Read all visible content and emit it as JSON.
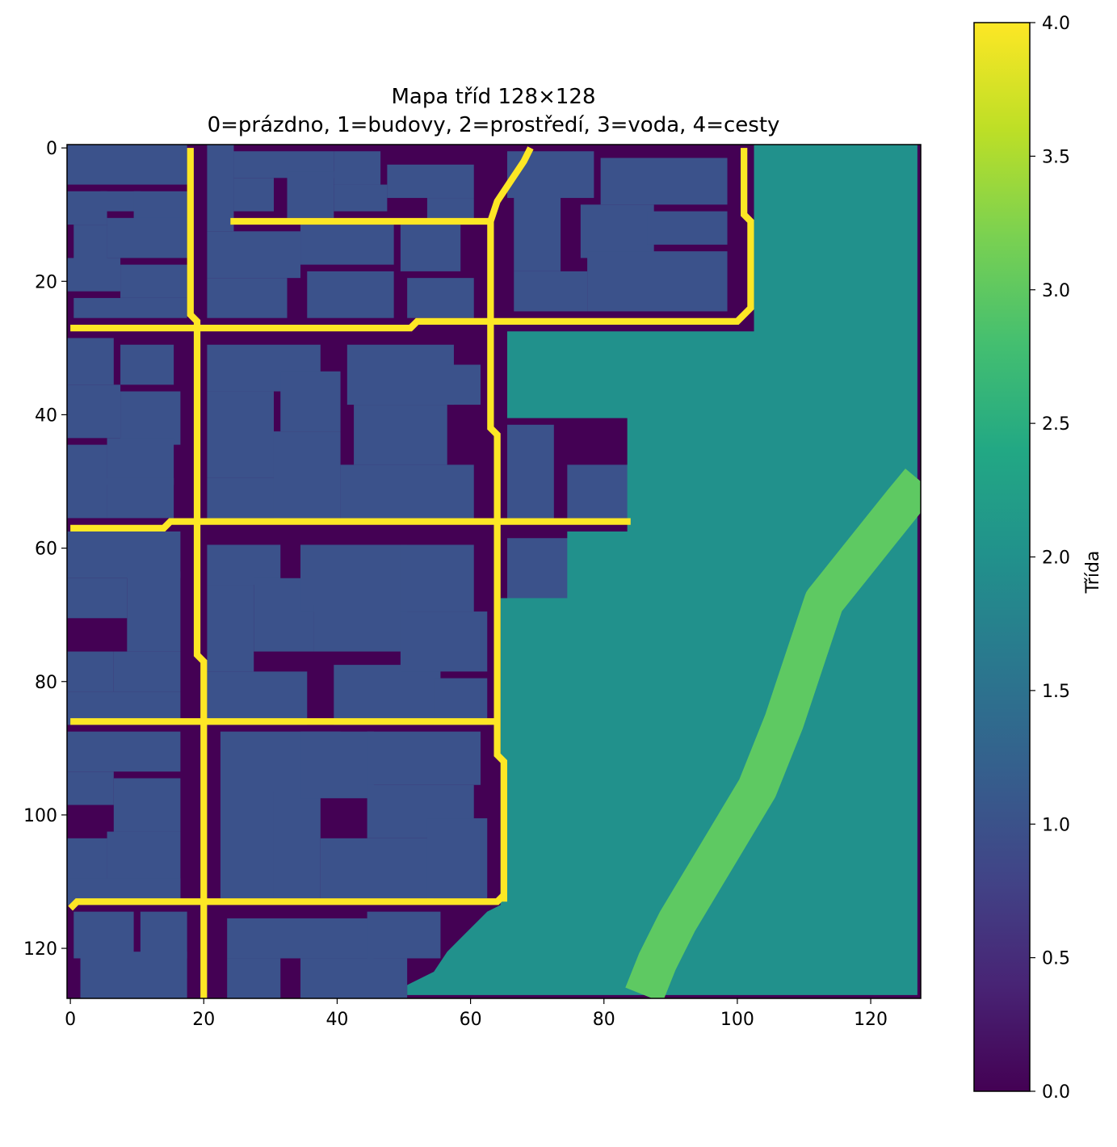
{
  "chart_data": {
    "type": "heatmap",
    "title_line1": "Mapa tříd 128×128",
    "title_line2": "0=prázdno, 1=budovy, 2=prostředí, 3=voda, 4=cesty",
    "grid_size": 128,
    "xlim": [
      -0.5,
      127.5
    ],
    "ylim": [
      127.5,
      -0.5
    ],
    "x_ticks": [
      "0",
      "20",
      "40",
      "60",
      "80",
      "100",
      "120"
    ],
    "y_ticks": [
      "0",
      "20",
      "40",
      "60",
      "80",
      "100",
      "120"
    ],
    "colormap": "viridis",
    "class_colors": {
      "0": "#440154",
      "1": "#3b528b",
      "2": "#21918c",
      "3": "#5ec962",
      "4": "#fde725"
    },
    "colorbar": {
      "label": "Třída",
      "range": [
        0.0,
        4.0
      ],
      "ticks": [
        "0.0",
        "0.5",
        "1.0",
        "1.5",
        "2.0",
        "2.5",
        "3.0",
        "3.5",
        "4.0"
      ]
    },
    "regions": {
      "background_class": 0,
      "environment_class": 2,
      "water_class": 3,
      "road_class": 4,
      "building_class": 1,
      "environment_polygon": [
        [
          103,
          0
        ],
        [
          127.5,
          0
        ],
        [
          127.5,
          127.5
        ],
        [
          51,
          127.5
        ],
        [
          51,
          126
        ],
        [
          55,
          124
        ],
        [
          57,
          121
        ],
        [
          59,
          119
        ],
        [
          61,
          117
        ],
        [
          63,
          115
        ],
        [
          65,
          114
        ],
        [
          65,
          80
        ],
        [
          65,
          68
        ],
        [
          75,
          68
        ],
        [
          75,
          58
        ],
        [
          84,
          58
        ],
        [
          84,
          41
        ],
        [
          66,
          41
        ],
        [
          66,
          28
        ],
        [
          103,
          28
        ]
      ],
      "water_river_path": [
        [
          86,
          127
        ],
        [
          88,
          122
        ],
        [
          91,
          116
        ],
        [
          94,
          111
        ],
        [
          97,
          106
        ],
        [
          100,
          101
        ],
        [
          103,
          96
        ],
        [
          105,
          91
        ],
        [
          107,
          86
        ],
        [
          109,
          80
        ],
        [
          111,
          74
        ],
        [
          113,
          68
        ],
        [
          117,
          63
        ],
        [
          121,
          58
        ],
        [
          125,
          53
        ],
        [
          127.5,
          50
        ]
      ],
      "water_river_width": 6,
      "roads": [
        [
          [
            18,
            0
          ],
          [
            18,
            25
          ],
          [
            19,
            26
          ],
          [
            19,
            76
          ],
          [
            20,
            77
          ],
          [
            20,
            128
          ]
        ],
        [
          [
            0,
            27
          ],
          [
            51,
            27
          ],
          [
            52,
            26
          ],
          [
            100,
            26
          ],
          [
            101,
            25
          ],
          [
            102,
            24
          ],
          [
            102,
            11
          ],
          [
            101,
            10
          ],
          [
            101,
            0
          ]
        ],
        [
          [
            24,
            11
          ],
          [
            63,
            11
          ],
          [
            64,
            8
          ],
          [
            66,
            5
          ],
          [
            68,
            2
          ],
          [
            69,
            0
          ]
        ],
        [
          [
            63,
            11
          ],
          [
            63,
            42
          ],
          [
            64,
            43
          ],
          [
            64,
            91
          ],
          [
            65,
            92
          ],
          [
            65,
            113
          ]
        ],
        [
          [
            0,
            57
          ],
          [
            14,
            57
          ],
          [
            15,
            56
          ],
          [
            84,
            56
          ]
        ],
        [
          [
            0,
            86
          ],
          [
            64,
            86
          ]
        ],
        [
          [
            0,
            114
          ],
          [
            1,
            113
          ],
          [
            64,
            113
          ],
          [
            65,
            112
          ]
        ]
      ],
      "building_blocks": [
        [
          0,
          0,
          17,
          5
        ],
        [
          0,
          7,
          5,
          11
        ],
        [
          5,
          7,
          10,
          9
        ],
        [
          10,
          7,
          17,
          11
        ],
        [
          1,
          12,
          5,
          17
        ],
        [
          6,
          11,
          17,
          16
        ],
        [
          0,
          17,
          7,
          21
        ],
        [
          8,
          18,
          17,
          22
        ],
        [
          1,
          23,
          17,
          25
        ],
        [
          21,
          0,
          24,
          12
        ],
        [
          25,
          1,
          39,
          4
        ],
        [
          25,
          5,
          30,
          9
        ],
        [
          33,
          4,
          39,
          10
        ],
        [
          40,
          1,
          46,
          5
        ],
        [
          40,
          6,
          47,
          9
        ],
        [
          48,
          3,
          60,
          7
        ],
        [
          54,
          8,
          60,
          11
        ],
        [
          21,
          13,
          34,
          19
        ],
        [
          21,
          20,
          32,
          25
        ],
        [
          35,
          12,
          48,
          17
        ],
        [
          36,
          19,
          48,
          25
        ],
        [
          50,
          12,
          58,
          18
        ],
        [
          51,
          20,
          60,
          25
        ],
        [
          66,
          1,
          78,
          7
        ],
        [
          67,
          7,
          73,
          18
        ],
        [
          80,
          2,
          98,
          8
        ],
        [
          77,
          9,
          87,
          16
        ],
        [
          87,
          10,
          98,
          14
        ],
        [
          67,
          19,
          77,
          24
        ],
        [
          78,
          16,
          98,
          24
        ],
        [
          0,
          29,
          6,
          35
        ],
        [
          8,
          30,
          15,
          35
        ],
        [
          0,
          36,
          7,
          43
        ],
        [
          8,
          37,
          16,
          44
        ],
        [
          0,
          45,
          5,
          55
        ],
        [
          6,
          44,
          15,
          50
        ],
        [
          6,
          50,
          15,
          55
        ],
        [
          21,
          30,
          37,
          36
        ],
        [
          21,
          37,
          30,
          49
        ],
        [
          21,
          50,
          31,
          55
        ],
        [
          32,
          34,
          40,
          42
        ],
        [
          31,
          43,
          40,
          55
        ],
        [
          42,
          30,
          57,
          38
        ],
        [
          43,
          39,
          56,
          47
        ],
        [
          41,
          48,
          60,
          55
        ],
        [
          57,
          33,
          61,
          38
        ],
        [
          66,
          42,
          72,
          55
        ],
        [
          75,
          48,
          84,
          55
        ],
        [
          0,
          58,
          16,
          64
        ],
        [
          0,
          65,
          8,
          70
        ],
        [
          9,
          64,
          16,
          75
        ],
        [
          0,
          76,
          6,
          81
        ],
        [
          0,
          82,
          16,
          86
        ],
        [
          7,
          76,
          16,
          81
        ],
        [
          21,
          60,
          31,
          65
        ],
        [
          21,
          66,
          27,
          78
        ],
        [
          28,
          65,
          36,
          75
        ],
        [
          35,
          60,
          50,
          69
        ],
        [
          21,
          79,
          35,
          86
        ],
        [
          37,
          69,
          50,
          75
        ],
        [
          40,
          78,
          55,
          86
        ],
        [
          50,
          60,
          60,
          69
        ],
        [
          50,
          70,
          62,
          78
        ],
        [
          55,
          80,
          62,
          86
        ],
        [
          66,
          59,
          75,
          68
        ],
        [
          0,
          88,
          16,
          93
        ],
        [
          0,
          94,
          6,
          98
        ],
        [
          7,
          95,
          16,
          102
        ],
        [
          0,
          104,
          5,
          110
        ],
        [
          6,
          103,
          16,
          112
        ],
        [
          0,
          110,
          16,
          113
        ],
        [
          23,
          88,
          40,
          96
        ],
        [
          23,
          97,
          30,
          112
        ],
        [
          31,
          97,
          37,
          112
        ],
        [
          35,
          88,
          45,
          97
        ],
        [
          45,
          88,
          61,
          95
        ],
        [
          45,
          96,
          60,
          103
        ],
        [
          38,
          104,
          54,
          112
        ],
        [
          54,
          101,
          62,
          112
        ],
        [
          1,
          115,
          9,
          121
        ],
        [
          11,
          115,
          17,
          121
        ],
        [
          2,
          121,
          17,
          127
        ],
        [
          24,
          116,
          45,
          121
        ],
        [
          24,
          122,
          31,
          127
        ],
        [
          35,
          122,
          50,
          127
        ],
        [
          45,
          115,
          55,
          121
        ]
      ]
    }
  }
}
